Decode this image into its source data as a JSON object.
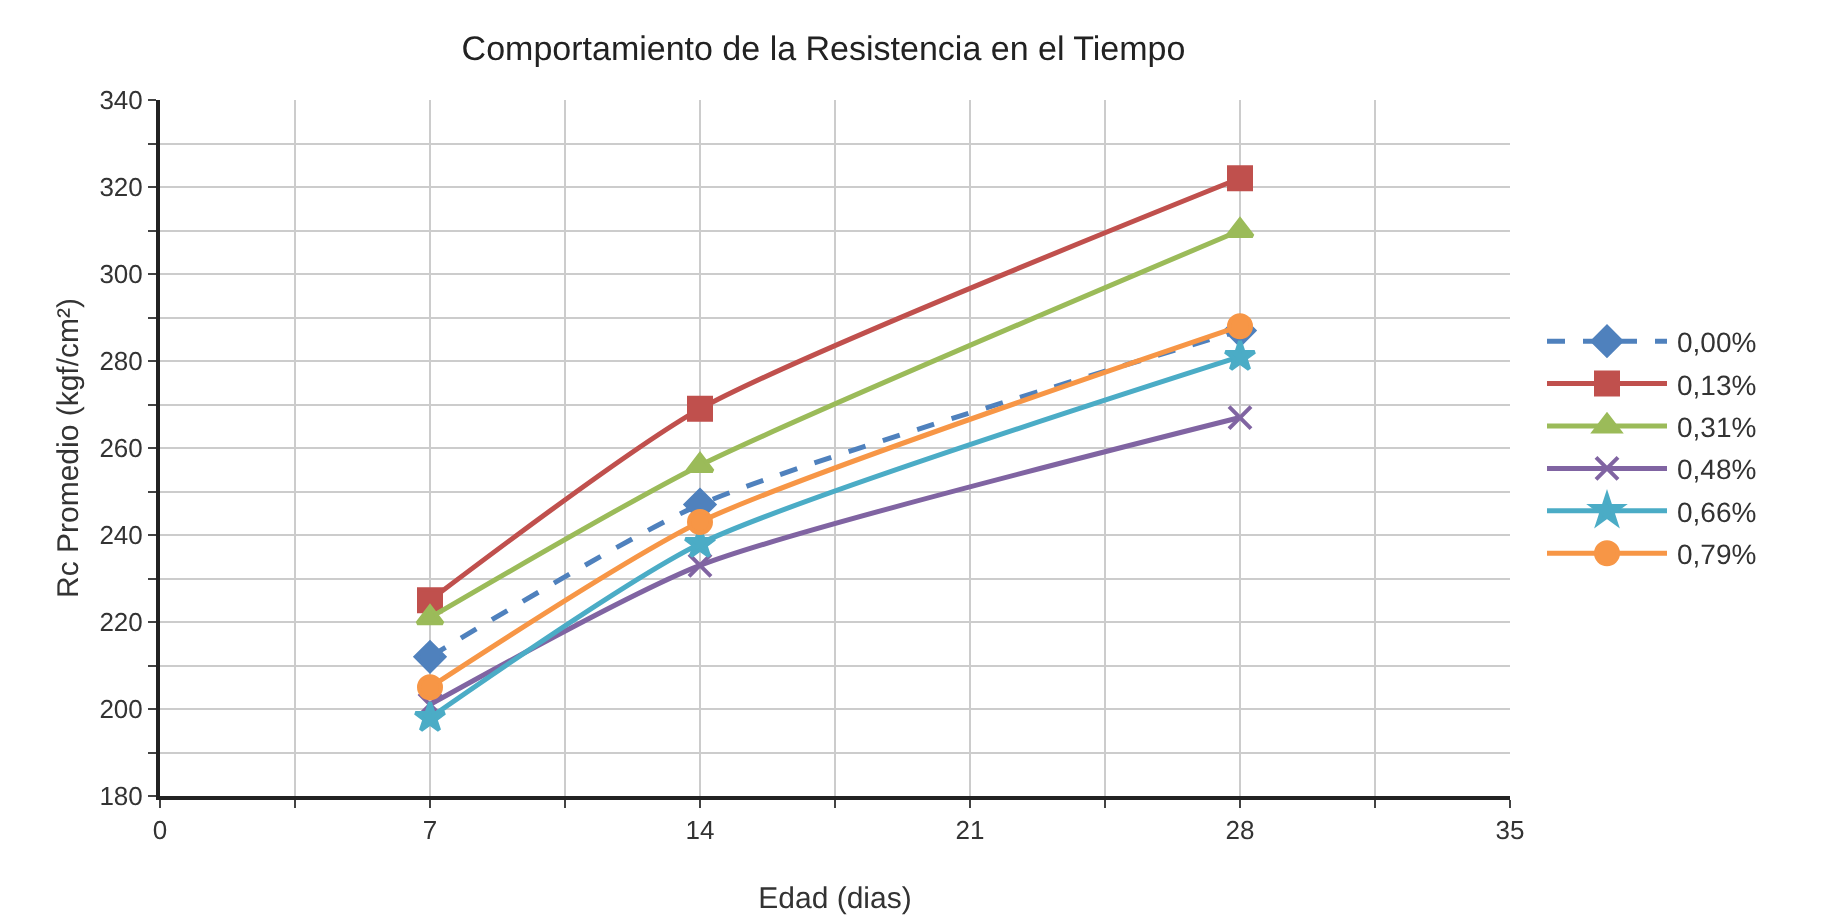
{
  "chart_data": {
    "type": "line",
    "title": "Comportamiento de la Resistencia en el Tiempo",
    "xlabel": "Edad (dias)",
    "ylabel": "Rc Promedio (kgf/cm²)",
    "x": [
      7,
      14,
      28
    ],
    "series": [
      {
        "name": "0,00%",
        "color": "#4f81bd",
        "values": [
          212,
          247,
          287
        ],
        "marker": "diamond",
        "line_style": "dashed"
      },
      {
        "name": "0,13%",
        "color": "#c0504d",
        "values": [
          225,
          269,
          322
        ],
        "marker": "square",
        "line_style": "solid"
      },
      {
        "name": "0,31%",
        "color": "#9bbb59",
        "values": [
          221,
          256,
          310
        ],
        "marker": "triangle",
        "line_style": "solid"
      },
      {
        "name": "0,48%",
        "color": "#8064a2",
        "values": [
          201,
          233,
          267
        ],
        "marker": "cross",
        "line_style": "solid"
      },
      {
        "name": "0,66%",
        "color": "#4bacc6",
        "values": [
          198,
          238,
          281
        ],
        "marker": "star",
        "line_style": "solid"
      },
      {
        "name": "0,79%",
        "color": "#f79646",
        "values": [
          205,
          243,
          288
        ],
        "marker": "circle",
        "line_style": "solid"
      }
    ],
    "xlim": [
      0,
      35
    ],
    "xticks": [
      0,
      {
        "value": 3.5,
        "label": null
      },
      7,
      {
        "value": 10.5,
        "label": null
      },
      14,
      {
        "value": 17.5,
        "label": null
      },
      21,
      {
        "value": 24.5,
        "label": null
      },
      28,
      {
        "value": 31.5,
        "label": null
      },
      35
    ],
    "ylim": [
      180,
      340
    ],
    "yticks": [
      180,
      {
        "value": 190,
        "label": null
      },
      200,
      {
        "value": 210,
        "label": null
      },
      220,
      {
        "value": 230,
        "label": null
      },
      240,
      {
        "value": 250,
        "label": null
      },
      260,
      {
        "value": 270,
        "label": null
      },
      280,
      {
        "value": 290,
        "label": null
      },
      300,
      {
        "value": 310,
        "label": null
      },
      320,
      {
        "value": 330,
        "label": null
      },
      340
    ],
    "grid": true,
    "legend": "right"
  }
}
